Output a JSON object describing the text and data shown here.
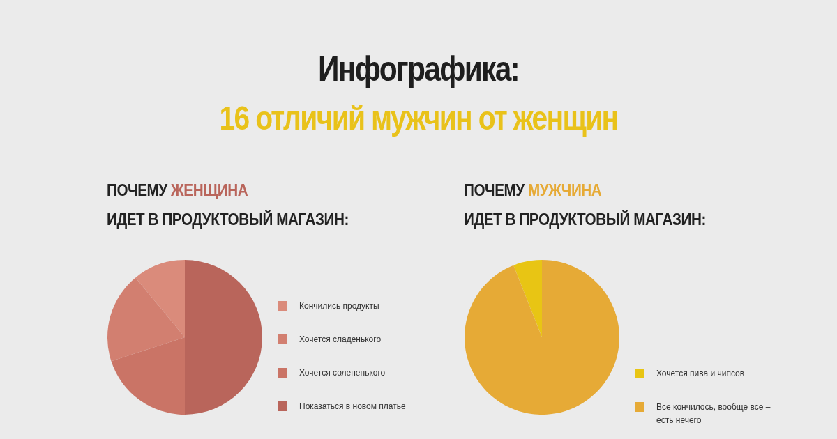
{
  "chart_data": [
    {
      "type": "other",
      "title": "Инфографика:",
      "subtitle": "16 отличий мужчин от женщин"
    },
    {
      "type": "pie",
      "title": "ПОЧЕМУ ЖЕНЩИНА ИДЕТ В ПРОДУКТОВЫЙ МАГАЗИН:",
      "categories": [
        "Кончились продукты",
        "Хочется сладенького",
        "Хочется солененького",
        "Показаться в новом платье"
      ],
      "values": [
        11,
        19,
        20,
        50
      ],
      "colors": [
        "#da8b7b",
        "#d27f70",
        "#ca7466",
        "#b9655b"
      ],
      "legend": "right"
    },
    {
      "type": "pie",
      "title": "ПОЧЕМУ МУЖЧИНА ИДЕТ В ПРОДУКТОВЫЙ МАГАЗИН:",
      "categories": [
        "Хочется пива и чипсов",
        "Все кончилось, вообще все – есть нечего"
      ],
      "values": [
        6,
        94
      ],
      "colors": [
        "#e8c514",
        "#e6aa36"
      ],
      "legend": "bottom right"
    }
  ]
}
